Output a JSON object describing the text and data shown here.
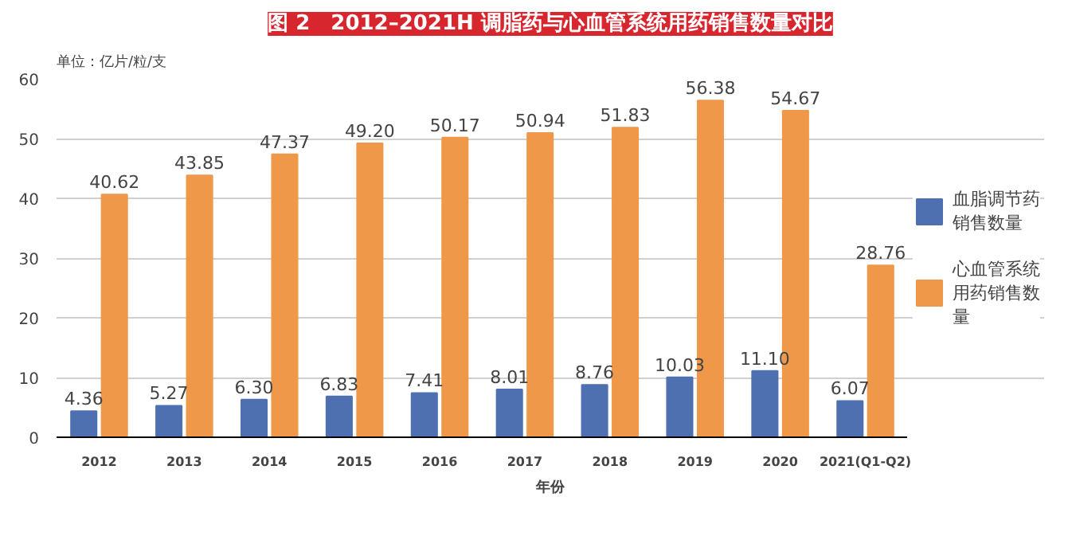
{
  "chart_data": {
    "type": "bar",
    "title": "图 2　2012–2021H 调脂药与心血管系统用药销售数量对比",
    "ylabel": "单位：亿片/粒/支",
    "xlabel": "年份",
    "categories": [
      "2012",
      "2013",
      "2014",
      "2015",
      "2016",
      "2017",
      "2018",
      "2019",
      "2020",
      "2021(Q1-Q2)"
    ],
    "series": [
      {
        "name": "血脂调节药销售数量",
        "color": "#4f70b0",
        "values": [
          4.36,
          5.27,
          6.3,
          6.83,
          7.41,
          8.01,
          8.76,
          10.03,
          11.1,
          6.07
        ],
        "value_labels": [
          "4.36",
          "5.27",
          "6.30",
          "6.83",
          "7.41",
          "8.01",
          "8.76",
          "10.03",
          "11.10",
          "6.07"
        ]
      },
      {
        "name": "心血管系统用药销售数量",
        "color": "#f0984a",
        "values": [
          40.62,
          43.85,
          47.37,
          49.2,
          50.17,
          50.94,
          51.83,
          56.38,
          54.67,
          28.76
        ],
        "value_labels": [
          "40.62",
          "43.85",
          "47.37",
          "49.20",
          "50.17",
          "50.94",
          "51.83",
          "56.38",
          "54.67",
          "28.76"
        ]
      }
    ],
    "ylim": [
      0,
      60
    ],
    "yticks": [
      0,
      10,
      20,
      30,
      40,
      50,
      60
    ],
    "grid": "y",
    "legend": "right"
  }
}
